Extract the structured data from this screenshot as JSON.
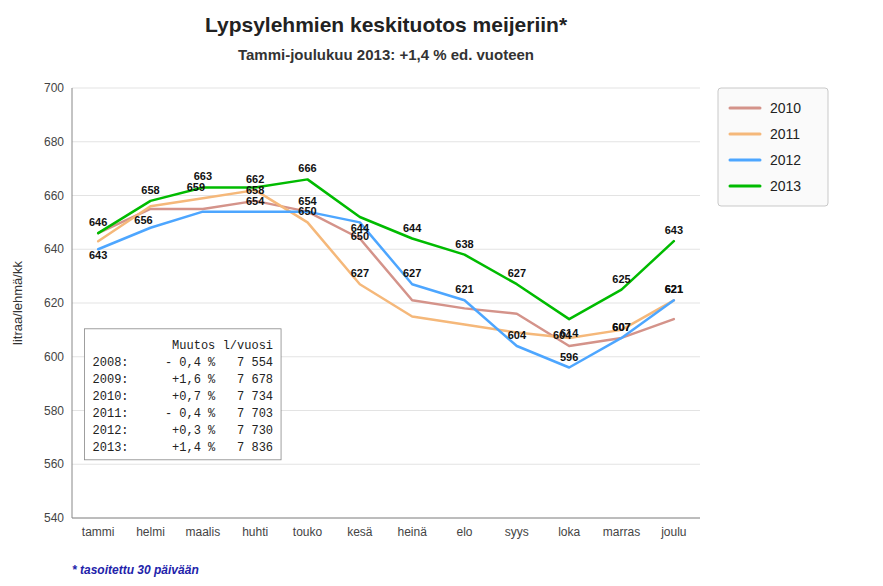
{
  "chart_data": {
    "type": "line",
    "title": "Lypsylehmien keskituotos meijeriin*",
    "subtitle": "Tammi-joulukuu 2013: +1,4 % ed. vuoteen",
    "ylabel": "litraa/lehmä/kk",
    "footnote": "* tasoitettu 30 päivään",
    "categories": [
      "tammi",
      "helmi",
      "maalis",
      "huhti",
      "touko",
      "kesä",
      "heinä",
      "elo",
      "syys",
      "loka",
      "marras",
      "joulu"
    ],
    "series": [
      {
        "name": "2010",
        "color": "#d4938a",
        "values": [
          646,
          655,
          655,
          658,
          654,
          644,
          621,
          618,
          616,
          604,
          607,
          614
        ],
        "value_labels": [
          "646",
          null,
          null,
          "658",
          null,
          "644",
          null,
          null,
          null,
          "604",
          "607",
          null
        ]
      },
      {
        "name": "2011",
        "color": "#f5b87a",
        "values": [
          643,
          656,
          659,
          662,
          650,
          627,
          615,
          612,
          609,
          607,
          610,
          621
        ],
        "value_labels": [
          "643",
          "656",
          "659",
          "662",
          "650",
          "627",
          null,
          null,
          null,
          null,
          null,
          "621"
        ]
      },
      {
        "name": "2012",
        "color": "#4da6ff",
        "values": [
          640,
          648,
          654,
          654,
          654,
          650,
          627,
          621,
          604,
          596,
          607,
          621
        ],
        "value_labels": [
          null,
          null,
          null,
          "654",
          "654",
          "650",
          "627",
          "621",
          "604",
          "596",
          "607",
          "621"
        ]
      },
      {
        "name": "2013",
        "color": "#00bb00",
        "values": [
          646,
          658,
          663,
          663,
          666,
          652,
          644,
          638,
          627,
          614,
          625,
          643
        ],
        "value_labels": [
          null,
          "658",
          "663",
          null,
          "666",
          null,
          "644",
          "638",
          "627",
          "614",
          "625",
          "643"
        ]
      }
    ],
    "ylim": [
      540,
      700
    ],
    "yticks": [
      540,
      560,
      580,
      600,
      620,
      640,
      660,
      680,
      700
    ],
    "grid": true,
    "legend": "right",
    "data_labels": true,
    "annotation": {
      "columns": [
        "Muutos",
        "l/vuosi"
      ],
      "rows": [
        [
          "2008:",
          "- 0,4 %",
          "7 554"
        ],
        [
          "2009:",
          "+1,6 %",
          "7 678"
        ],
        [
          "2010:",
          "+0,7 %",
          "7 734"
        ],
        [
          "2011:",
          "- 0,4 %",
          "7 703"
        ],
        [
          "2012:",
          "+0,3 %",
          "7 730"
        ],
        [
          "2013:",
          "+1,4 %",
          "7 836"
        ]
      ]
    }
  }
}
